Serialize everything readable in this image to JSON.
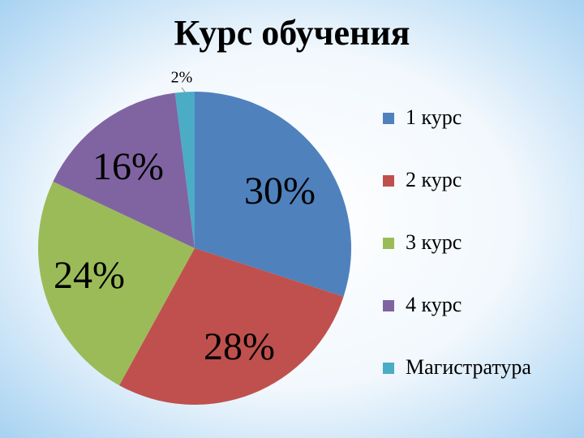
{
  "chart_data": {
    "type": "pie",
    "title": "Курс обучения",
    "categories": [
      "1 курс",
      "2 курс",
      "3 курс",
      "4 курс",
      "Магистратура"
    ],
    "values": [
      30,
      28,
      24,
      16,
      2
    ],
    "value_labels": [
      "30%",
      "28%",
      "24%",
      "16%",
      "2%"
    ],
    "colors": [
      "#4f81bd",
      "#c0504d",
      "#9bbb59",
      "#8064a2",
      "#4bacc6"
    ],
    "legend": "right"
  }
}
